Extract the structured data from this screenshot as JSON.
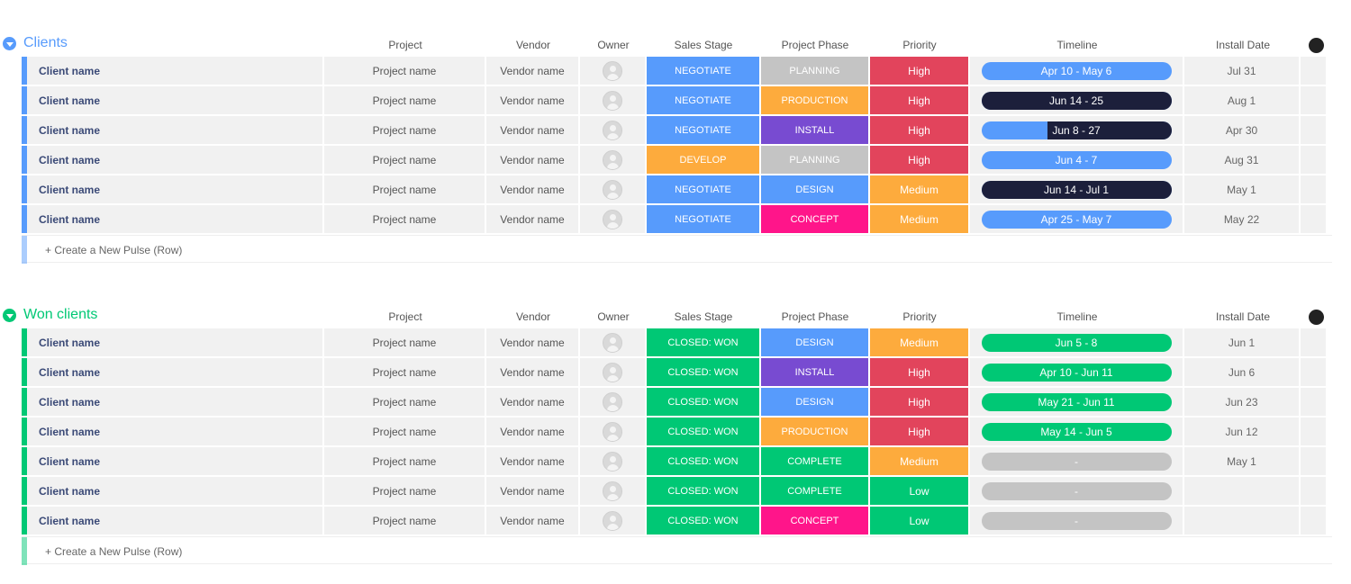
{
  "colors": {
    "blue": "#579bfc",
    "dark": "#1c1f3b",
    "green": "#00c875",
    "red": "#e2445c",
    "orange": "#fdab3d",
    "grey": "#c4c4c4",
    "purple": "#784bd1",
    "pink": "#ff158a",
    "clients_accent": "#579bfc",
    "won_accent": "#00c875"
  },
  "columns": {
    "project": "Project",
    "vendor": "Vendor",
    "owner": "Owner",
    "stage": "Sales Stage",
    "phase": "Project Phase",
    "priority": "Priority",
    "timeline": "Timeline",
    "install": "Install Date"
  },
  "groups": [
    {
      "title": "Clients",
      "accent": "#579bfc",
      "new_row_label": "+ Create a New Pulse (Row)",
      "rows": [
        {
          "client": "Client name",
          "project": "Project name",
          "vendor": "Vendor name",
          "stage": "NEGOTIATE",
          "stage_color": "#579bfc",
          "phase": "PLANNING",
          "phase_color": "#c4c4c4",
          "priority": "High",
          "priority_color": "#e2445c",
          "timeline": "Apr 10 - May 6",
          "timeline_color": "#579bfc",
          "timeline_progress": 0,
          "install": "Jul 31"
        },
        {
          "client": "Client name",
          "project": "Project name",
          "vendor": "Vendor name",
          "stage": "NEGOTIATE",
          "stage_color": "#579bfc",
          "phase": "PRODUCTION",
          "phase_color": "#fdab3d",
          "priority": "High",
          "priority_color": "#e2445c",
          "timeline": "Jun 14 - 25",
          "timeline_color": "#579bfc",
          "timeline_progress": 1,
          "install": "Aug 1"
        },
        {
          "client": "Client name",
          "project": "Project name",
          "vendor": "Vendor name",
          "stage": "NEGOTIATE",
          "stage_color": "#579bfc",
          "phase": "INSTALL",
          "phase_color": "#784bd1",
          "priority": "High",
          "priority_color": "#e2445c",
          "timeline": "Jun 8 - 27",
          "timeline_color": "#579bfc",
          "timeline_progress": 0.65,
          "install": "Apr 30"
        },
        {
          "client": "Client name",
          "project": "Project name",
          "vendor": "Vendor name",
          "stage": "DEVELOP",
          "stage_color": "#fdab3d",
          "phase": "PLANNING",
          "phase_color": "#c4c4c4",
          "priority": "High",
          "priority_color": "#e2445c",
          "timeline": "Jun 4 - 7",
          "timeline_color": "#579bfc",
          "timeline_progress": 0,
          "install": "Aug 31"
        },
        {
          "client": "Client name",
          "project": "Project name",
          "vendor": "Vendor name",
          "stage": "NEGOTIATE",
          "stage_color": "#579bfc",
          "phase": "DESIGN",
          "phase_color": "#579bfc",
          "priority": "Medium",
          "priority_color": "#fdab3d",
          "timeline": "Jun 14 - Jul 1",
          "timeline_color": "#579bfc",
          "timeline_progress": 1,
          "install": "May 1"
        },
        {
          "client": "Client name",
          "project": "Project name",
          "vendor": "Vendor name",
          "stage": "NEGOTIATE",
          "stage_color": "#579bfc",
          "phase": "CONCEPT",
          "phase_color": "#ff158a",
          "priority": "Medium",
          "priority_color": "#fdab3d",
          "timeline": "Apr 25 - May 7",
          "timeline_color": "#579bfc",
          "timeline_progress": 0,
          "install": "May 22"
        }
      ]
    },
    {
      "title": "Won clients",
      "accent": "#00c875",
      "new_row_label": "+ Create a New Pulse (Row)",
      "rows": [
        {
          "client": "Client name",
          "project": "Project name",
          "vendor": "Vendor name",
          "stage": "CLOSED: WON",
          "stage_color": "#00c875",
          "phase": "DESIGN",
          "phase_color": "#579bfc",
          "priority": "Medium",
          "priority_color": "#fdab3d",
          "timeline": "Jun 5 - 8",
          "timeline_color": "#00c875",
          "timeline_progress": 0,
          "install": "Jun 1"
        },
        {
          "client": "Client name",
          "project": "Project name",
          "vendor": "Vendor name",
          "stage": "CLOSED: WON",
          "stage_color": "#00c875",
          "phase": "INSTALL",
          "phase_color": "#784bd1",
          "priority": "High",
          "priority_color": "#e2445c",
          "timeline": "Apr 10 - Jun 11",
          "timeline_color": "#00c875",
          "timeline_progress": 0,
          "install": "Jun 6"
        },
        {
          "client": "Client name",
          "project": "Project name",
          "vendor": "Vendor name",
          "stage": "CLOSED: WON",
          "stage_color": "#00c875",
          "phase": "DESIGN",
          "phase_color": "#579bfc",
          "priority": "High",
          "priority_color": "#e2445c",
          "timeline": "May 21 - Jun 11",
          "timeline_color": "#00c875",
          "timeline_progress": 0,
          "install": "Jun 23"
        },
        {
          "client": "Client name",
          "project": "Project name",
          "vendor": "Vendor name",
          "stage": "CLOSED: WON",
          "stage_color": "#00c875",
          "phase": "PRODUCTION",
          "phase_color": "#fdab3d",
          "priority": "High",
          "priority_color": "#e2445c",
          "timeline": "May 14 - Jun 5",
          "timeline_color": "#00c875",
          "timeline_progress": 0,
          "install": "Jun 12"
        },
        {
          "client": "Client name",
          "project": "Project name",
          "vendor": "Vendor name",
          "stage": "CLOSED: WON",
          "stage_color": "#00c875",
          "phase": "COMPLETE",
          "phase_color": "#00c875",
          "priority": "Medium",
          "priority_color": "#fdab3d",
          "timeline": "-",
          "timeline_color": "#c4c4c4",
          "timeline_progress": 0,
          "install": "May 1"
        },
        {
          "client": "Client name",
          "project": "Project name",
          "vendor": "Vendor name",
          "stage": "CLOSED: WON",
          "stage_color": "#00c875",
          "phase": "COMPLETE",
          "phase_color": "#00c875",
          "priority": "Low",
          "priority_color": "#00c875",
          "timeline": "-",
          "timeline_color": "#c4c4c4",
          "timeline_progress": 0,
          "install": ""
        },
        {
          "client": "Client name",
          "project": "Project name",
          "vendor": "Vendor name",
          "stage": "CLOSED: WON",
          "stage_color": "#00c875",
          "phase": "CONCEPT",
          "phase_color": "#ff158a",
          "priority": "Low",
          "priority_color": "#00c875",
          "timeline": "-",
          "timeline_color": "#c4c4c4",
          "timeline_progress": 0,
          "install": ""
        }
      ]
    }
  ]
}
